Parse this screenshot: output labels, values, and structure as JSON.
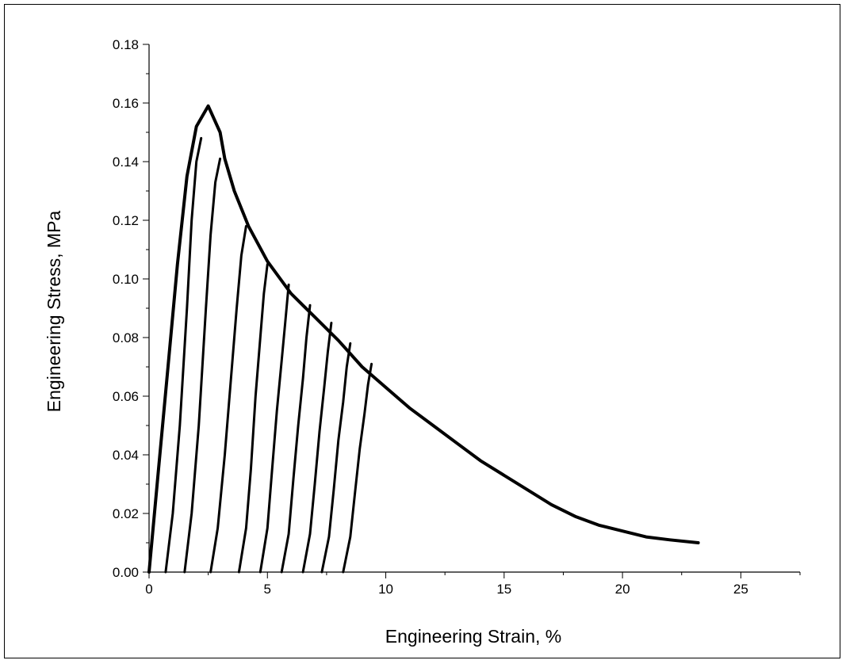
{
  "chart_data": {
    "type": "line",
    "title": "",
    "xlabel": "Engineering Strain, %",
    "ylabel": "Engineering Stress, MPa",
    "xlim": [
      0,
      27.5
    ],
    "ylim": [
      0,
      0.18
    ],
    "x_ticks": [
      "0",
      "5",
      "10",
      "15",
      "20",
      "25"
    ],
    "y_ticks": [
      "0.00",
      "0.02",
      "0.04",
      "0.06",
      "0.08",
      "0.10",
      "0.12",
      "0.14",
      "0.16",
      "0.18"
    ],
    "grid": false,
    "legend": "none",
    "color": "#000000",
    "series": [
      {
        "x": [
          0.0,
          0.4,
          0.8,
          1.2,
          1.6,
          2.0,
          2.5,
          3.0,
          3.2,
          3.6,
          4.2,
          5.0,
          6.0,
          7.0,
          8.0,
          9.0,
          10.0,
          11.0,
          12.0,
          13.0,
          14.0,
          15.0,
          16.0,
          17.0,
          18.0,
          19.0,
          20.0,
          21.0,
          22.0,
          23.2
        ],
        "y": [
          0.0,
          0.035,
          0.07,
          0.105,
          0.135,
          0.152,
          0.159,
          0.15,
          0.141,
          0.13,
          0.118,
          0.106,
          0.095,
          0.087,
          0.079,
          0.07,
          0.063,
          0.056,
          0.05,
          0.044,
          0.038,
          0.033,
          0.028,
          0.023,
          0.019,
          0.016,
          0.014,
          0.012,
          0.011,
          0.01
        ]
      },
      {
        "x": [
          0.7,
          1.0,
          1.3,
          1.6,
          1.8,
          2.0,
          2.2
        ],
        "y": [
          0.0,
          0.02,
          0.05,
          0.09,
          0.12,
          0.14,
          0.148
        ]
      },
      {
        "x": [
          1.5,
          1.8,
          2.1,
          2.4,
          2.6,
          2.8,
          3.0
        ],
        "y": [
          0.0,
          0.02,
          0.05,
          0.09,
          0.115,
          0.133,
          0.141
        ]
      },
      {
        "x": [
          2.6,
          2.9,
          3.2,
          3.5,
          3.7,
          3.9,
          4.1
        ],
        "y": [
          0.0,
          0.015,
          0.04,
          0.07,
          0.09,
          0.108,
          0.118
        ]
      },
      {
        "x": [
          3.8,
          4.1,
          4.3,
          4.5,
          4.7,
          4.85,
          5.0
        ],
        "y": [
          0.0,
          0.015,
          0.035,
          0.06,
          0.08,
          0.095,
          0.105
        ]
      },
      {
        "x": [
          4.7,
          5.0,
          5.2,
          5.4,
          5.6,
          5.75,
          5.9
        ],
        "y": [
          0.0,
          0.015,
          0.035,
          0.055,
          0.072,
          0.085,
          0.098
        ]
      },
      {
        "x": [
          5.6,
          5.9,
          6.1,
          6.3,
          6.5,
          6.65,
          6.8
        ],
        "y": [
          0.0,
          0.013,
          0.032,
          0.05,
          0.066,
          0.08,
          0.091
        ]
      },
      {
        "x": [
          6.5,
          6.8,
          7.0,
          7.2,
          7.4,
          7.55,
          7.7
        ],
        "y": [
          0.0,
          0.013,
          0.03,
          0.048,
          0.063,
          0.075,
          0.085
        ]
      },
      {
        "x": [
          7.3,
          7.6,
          7.8,
          8.0,
          8.2,
          8.35,
          8.5
        ],
        "y": [
          0.0,
          0.012,
          0.028,
          0.045,
          0.058,
          0.07,
          0.078
        ]
      },
      {
        "x": [
          8.2,
          8.5,
          8.7,
          8.9,
          9.1,
          9.25,
          9.4
        ],
        "y": [
          0.0,
          0.012,
          0.027,
          0.042,
          0.054,
          0.064,
          0.071
        ]
      }
    ]
  }
}
